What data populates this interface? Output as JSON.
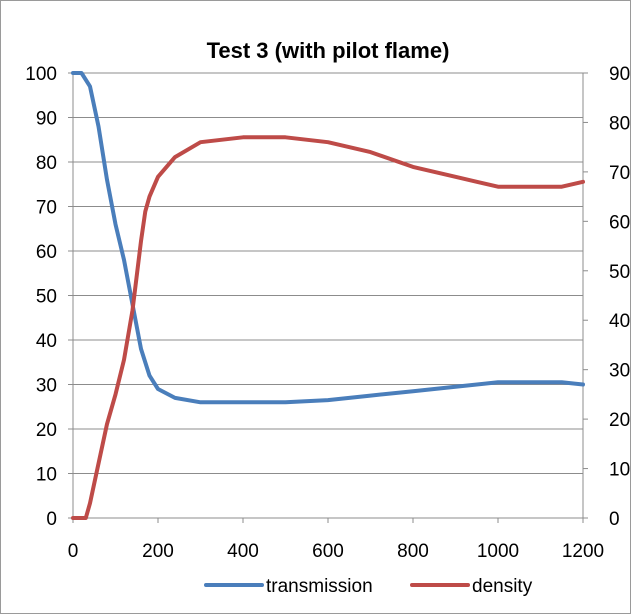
{
  "chart_data": {
    "type": "line",
    "title": "Test 3 (with pilot flame)",
    "xlabel": "",
    "ylabel": "",
    "y2label": "",
    "xlim": [
      0,
      1200
    ],
    "ylim": [
      0,
      100
    ],
    "y2lim": [
      0,
      90
    ],
    "x_ticks": [
      "0",
      "200",
      "400",
      "600",
      "800",
      "1000",
      "1200"
    ],
    "y_ticks": [
      "0",
      "10",
      "20",
      "30",
      "40",
      "50",
      "60",
      "70",
      "80",
      "90",
      "100"
    ],
    "y2_ticks": [
      "0",
      "10",
      "20",
      "30",
      "40",
      "50",
      "60",
      "70",
      "80",
      "90"
    ],
    "grid": "horizontal",
    "legend_position": "bottom",
    "series": [
      {
        "name": "transmission",
        "axis": "left",
        "color": "#4a7ebb",
        "x": [
          0,
          20,
          40,
          60,
          80,
          100,
          120,
          140,
          160,
          180,
          200,
          240,
          300,
          400,
          500,
          600,
          700,
          800,
          900,
          1000,
          1050,
          1100,
          1150,
          1200
        ],
        "y": [
          100,
          100,
          97,
          88,
          76,
          66,
          58,
          48,
          38,
          32,
          29,
          27,
          26,
          26,
          26,
          26.5,
          27.5,
          28.5,
          29.5,
          30.5,
          30.5,
          30.5,
          30.5,
          30
        ]
      },
      {
        "name": "density",
        "axis": "right",
        "color": "#be4b48",
        "x": [
          0,
          20,
          30,
          40,
          60,
          80,
          100,
          120,
          140,
          160,
          170,
          180,
          200,
          240,
          300,
          400,
          500,
          600,
          700,
          800,
          900,
          950,
          1000,
          1050,
          1100,
          1150,
          1200
        ],
        "y": [
          0,
          0,
          0,
          3,
          11,
          19,
          25,
          32,
          42,
          56,
          62,
          65,
          69,
          73,
          76,
          77,
          77,
          76,
          74,
          71,
          69,
          68,
          67,
          67,
          67,
          67,
          68
        ]
      }
    ]
  }
}
